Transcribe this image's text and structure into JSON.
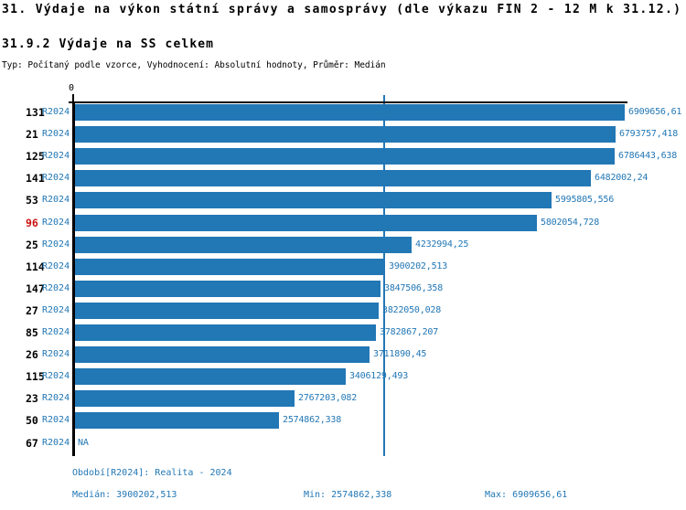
{
  "title": "31. Výdaje na výkon státní správy a samosprávy (dle výkazu FIN 2 - 12 M k 31.12.)",
  "subtitle": "31.9.2 Výdaje na SS celkem",
  "meta_line": "Typ: Počítaný podle vzorce, Vyhodnocení: Absolutní hodnoty, Průměr: Medián",
  "colors": {
    "bar_blue": "#2277B5",
    "text_blue": "#2277B5",
    "highlight_red": "#CC1111",
    "axis_black": "#000000"
  },
  "chart_data": {
    "type": "bar",
    "orientation": "horizontal",
    "title": "31.9.2 Výdaje na SS celkem",
    "xlabel": "",
    "ylabel": "",
    "xlim": [
      0,
      6909656.61
    ],
    "axis_zero_label": "0",
    "grid": false,
    "legend": false,
    "period_label": "R2024",
    "highlighted_category": "96",
    "median_line_value": 3900202.513,
    "categories": [
      "131",
      "21",
      "125",
      "141",
      "53",
      "96",
      "25",
      "114",
      "147",
      "27",
      "85",
      "26",
      "115",
      "23",
      "50",
      "67"
    ],
    "values": [
      6909656.61,
      6793757.418,
      6786443.638,
      6482002.24,
      5995805.556,
      5802054.728,
      4232994.25,
      3900202.513,
      3847506.358,
      3822050.028,
      3782867.207,
      3711890.45,
      3406129.493,
      2767203.082,
      2574862.338,
      null
    ],
    "value_labels": [
      "6909656,61",
      "6793757,418",
      "6786443,638",
      "6482002,24",
      "5995805,556",
      "5802054,728",
      "4232994,25",
      "3900202,513",
      "3847506,358",
      "3822050,028",
      "3782867,207",
      "3711890,45",
      "3406129,493",
      "2767203,082",
      "2574862,338",
      "NA"
    ]
  },
  "footer": {
    "period": "Období[R2024]: Realita - 2024",
    "median": "Medián: 3900202,513",
    "min": "Min: 2574862,338",
    "max": "Max: 6909656,61"
  }
}
